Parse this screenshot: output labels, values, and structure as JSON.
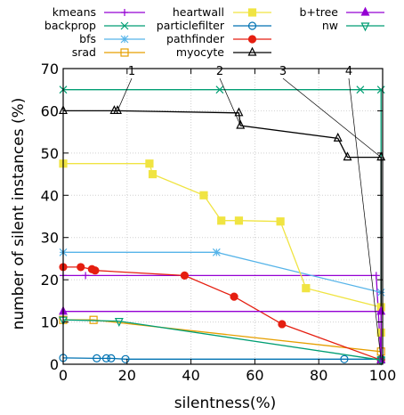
{
  "chart_data": {
    "type": "line",
    "xlabel": "silentness(%)",
    "ylabel": "number of silent instances (%)",
    "xlim": [
      0,
      100
    ],
    "ylim": [
      0,
      70
    ],
    "xticks": [
      0,
      20,
      40,
      60,
      80,
      100
    ],
    "yticks": [
      0,
      10,
      20,
      30,
      40,
      50,
      60,
      70
    ],
    "grid": true,
    "legend": "top, three columns above plot",
    "annotations": [
      {
        "label": "1",
        "points_to": [
          17,
          60
        ]
      },
      {
        "label": "2",
        "points_to": [
          55.5,
          56.5
        ]
      },
      {
        "label": "3",
        "points_to": [
          99.5,
          49
        ]
      },
      {
        "label": "4",
        "points_to": [
          99.5,
          1
        ]
      }
    ],
    "series": [
      {
        "name": "kmeans",
        "color": "#9400d3",
        "marker": "plus",
        "points": [
          [
            0,
            21
          ],
          [
            7,
            21
          ],
          [
            98,
            21
          ],
          [
            99.5,
            1
          ]
        ]
      },
      {
        "name": "backprop",
        "color": "#009e73",
        "marker": "x",
        "points": [
          [
            0,
            65
          ],
          [
            49,
            65
          ],
          [
            93,
            65
          ],
          [
            99.5,
            65
          ],
          [
            99.5,
            1
          ]
        ]
      },
      {
        "name": "bfs",
        "color": "#56b4e9",
        "marker": "star",
        "points": [
          [
            0,
            26.5
          ],
          [
            48,
            26.5
          ],
          [
            99.5,
            17
          ]
        ]
      },
      {
        "name": "srad",
        "color": "#e69f00",
        "marker": "square",
        "points": [
          [
            0,
            10.5
          ],
          [
            9.5,
            10.5
          ],
          [
            99.5,
            3
          ]
        ]
      },
      {
        "name": "heartwall",
        "color": "#f0e442",
        "marker": "square-filled",
        "points": [
          [
            0,
            47.5
          ],
          [
            27,
            47.5
          ],
          [
            28,
            45
          ],
          [
            44,
            40
          ],
          [
            49.5,
            34
          ],
          [
            55,
            34
          ],
          [
            68,
            33.8
          ],
          [
            76,
            18
          ],
          [
            99.5,
            13.5
          ],
          [
            99.5,
            7.5
          ]
        ]
      },
      {
        "name": "particlefilter",
        "color": "#0072b2",
        "marker": "circle",
        "points": [
          [
            0,
            1.5
          ],
          [
            10.5,
            1.4
          ],
          [
            13.5,
            1.4
          ],
          [
            15,
            1.4
          ],
          [
            19.5,
            1.2
          ],
          [
            88,
            1.2
          ],
          [
            99.5,
            1.2
          ]
        ]
      },
      {
        "name": "pathfinder",
        "color": "#e51e10",
        "marker": "circle-filled",
        "points": [
          [
            0,
            23
          ],
          [
            5.5,
            23
          ],
          [
            9,
            22.5
          ],
          [
            10,
            22.2
          ],
          [
            38,
            21
          ],
          [
            53.5,
            16
          ],
          [
            68.5,
            9.5
          ],
          [
            99.5,
            1
          ]
        ]
      },
      {
        "name": "myocyte",
        "color": "#000000",
        "marker": "triangle",
        "points": [
          [
            0,
            60
          ],
          [
            16,
            60
          ],
          [
            17,
            60
          ],
          [
            55,
            59.5
          ],
          [
            55.5,
            56.5
          ],
          [
            86,
            53.5
          ],
          [
            89,
            49
          ],
          [
            99.5,
            49
          ],
          [
            99.5,
            1
          ]
        ]
      },
      {
        "name": "b+tree",
        "color": "#9400d3",
        "marker": "triangle-filled",
        "points": [
          [
            0,
            12.5
          ],
          [
            99.5,
            12.5
          ],
          [
            99.5,
            1
          ]
        ]
      },
      {
        "name": "nw",
        "color": "#009e73",
        "marker": "triangle-down",
        "points": [
          [
            0,
            10.5
          ],
          [
            17.5,
            10.2
          ],
          [
            99.5,
            1
          ]
        ]
      }
    ]
  }
}
